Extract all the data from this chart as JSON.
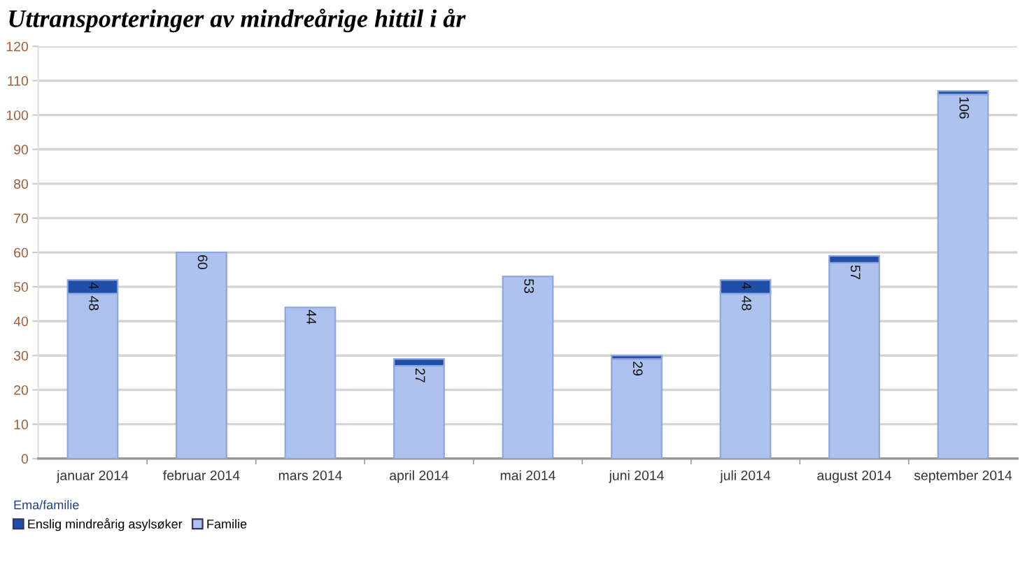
{
  "chart_data": {
    "type": "bar",
    "title": "Uttransporteringer av mindreårige hittil i år",
    "legend_title": "Ema/familie",
    "categories": [
      "januar 2014",
      "februar 2014",
      "mars 2014",
      "april 2014",
      "mai 2014",
      "juni 2014",
      "juli 2014",
      "august 2014",
      "september 2014"
    ],
    "stacked": true,
    "series": [
      {
        "name": "Familie",
        "color": "#adc2ee",
        "values": [
          48,
          60,
          44,
          27,
          53,
          29,
          48,
          57,
          106
        ],
        "value_labels": [
          "48",
          "60",
          "44",
          "27",
          "53",
          "29",
          "48",
          "57",
          "106"
        ]
      },
      {
        "name": "Enslig mindreårig asylsøker",
        "color": "#1f4fa8",
        "values": [
          4,
          null,
          null,
          2,
          null,
          1,
          4,
          2,
          1
        ],
        "value_labels": [
          "4",
          null,
          null,
          null,
          null,
          null,
          "4",
          null,
          null
        ]
      }
    ],
    "ylim": [
      0,
      120
    ],
    "yticks": [
      0,
      10,
      20,
      30,
      40,
      50,
      60,
      70,
      80,
      90,
      100,
      110,
      120
    ],
    "grid": "y",
    "legend": "bottom left"
  }
}
